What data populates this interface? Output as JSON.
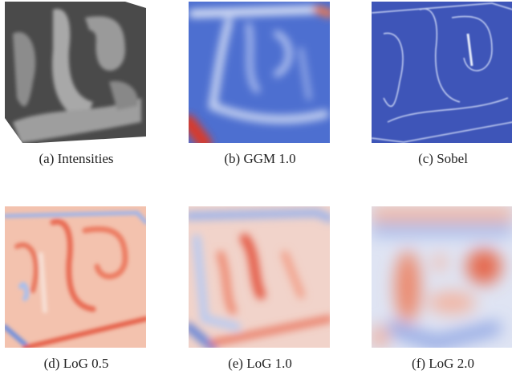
{
  "figure": {
    "panels": [
      {
        "label": "(a)",
        "caption": "Intensities"
      },
      {
        "label": "(b)",
        "caption": "GGM 1.0"
      },
      {
        "label": "(c)",
        "caption": "Sobel"
      },
      {
        "label": "(d)",
        "caption": "LoG 0.5"
      },
      {
        "label": "(e)",
        "caption": "LoG 1.0"
      },
      {
        "label": "(f)",
        "caption": "LoG 2.0"
      }
    ]
  }
}
